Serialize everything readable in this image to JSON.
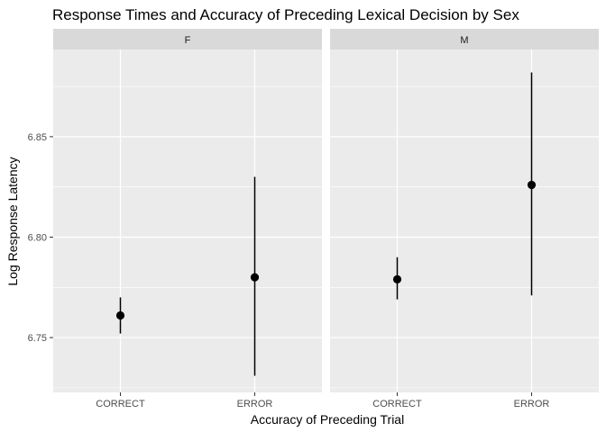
{
  "chart_data": {
    "type": "pointrange",
    "title": "Response Times and Accuracy of Preceding Lexical Decision by Sex",
    "xlabel": "Accuracy of Preceding Trial",
    "ylabel": "Log Response Latency",
    "categories": [
      "CORRECT",
      "ERROR"
    ],
    "ylim": [
      6.7227,
      6.8934
    ],
    "yticks": [
      6.75,
      6.8,
      6.85
    ],
    "ytick_labels": [
      "6.75",
      "6.80",
      "6.85"
    ],
    "grid": true,
    "facets": [
      {
        "label": "F",
        "points": [
          {
            "x": "CORRECT",
            "y": 6.761,
            "ymin": 6.752,
            "ymax": 6.77
          },
          {
            "x": "ERROR",
            "y": 6.78,
            "ymin": 6.731,
            "ymax": 6.83
          }
        ]
      },
      {
        "label": "M",
        "points": [
          {
            "x": "CORRECT",
            "y": 6.779,
            "ymin": 6.769,
            "ymax": 6.79
          },
          {
            "x": "ERROR",
            "y": 6.826,
            "ymin": 6.771,
            "ymax": 6.882
          }
        ]
      }
    ]
  },
  "colors": {
    "panel_bg": "#ebebeb",
    "strip_bg": "#d9d9d9",
    "grid_major": "#ffffff",
    "point": "#000000"
  }
}
